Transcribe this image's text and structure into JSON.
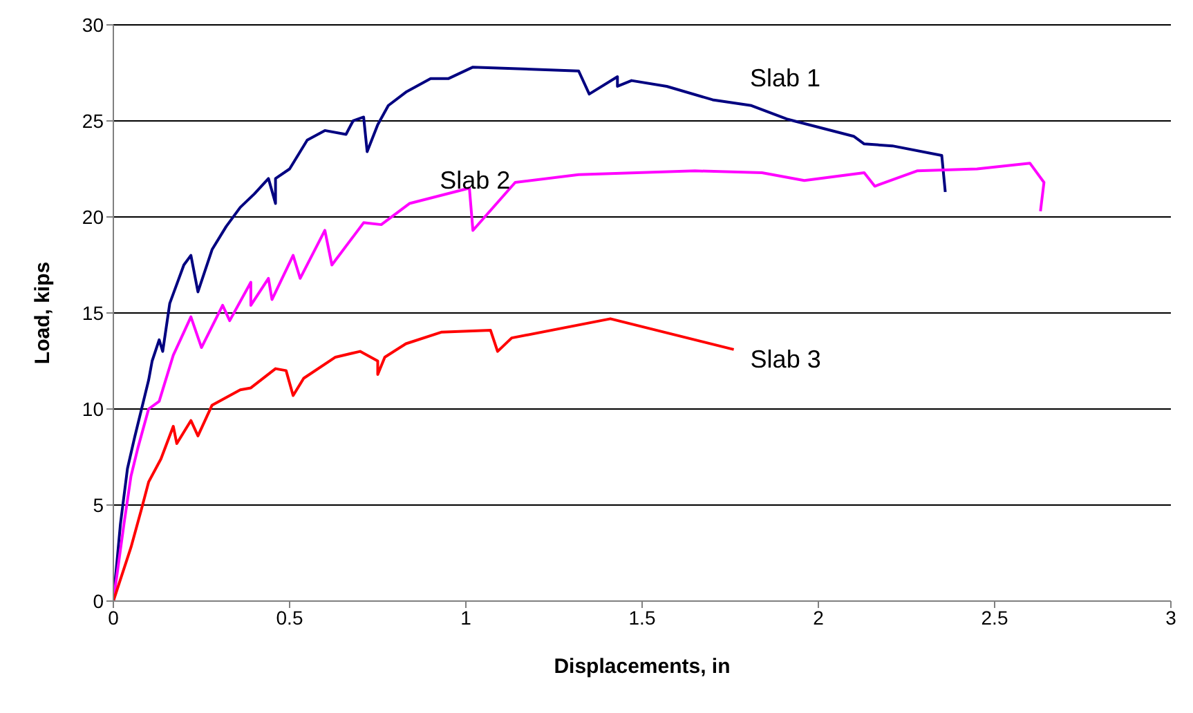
{
  "chart_data": {
    "type": "line",
    "xlabel": "Displacements, in",
    "ylabel": "Load, kips",
    "xlim": [
      0,
      3
    ],
    "xticks": [
      0,
      0.5,
      1,
      1.5,
      2,
      2.5,
      3
    ],
    "ylim": [
      0,
      30
    ],
    "yticks": [
      0,
      5,
      10,
      15,
      20,
      25,
      30
    ],
    "grid": "y",
    "legend": false,
    "marker": "none",
    "line_style": "solid",
    "series": [
      {
        "name": "Slab 1",
        "color": "#000080",
        "x": [
          0,
          0.02,
          0.04,
          0.06,
          0.08,
          0.1,
          0.11,
          0.13,
          0.14,
          0.16,
          0.2,
          0.22,
          0.24,
          0.28,
          0.32,
          0.36,
          0.4,
          0.44,
          0.46,
          0.46,
          0.5,
          0.55,
          0.6,
          0.66,
          0.68,
          0.71,
          0.72,
          0.75,
          0.78,
          0.83,
          0.9,
          0.95,
          1.02,
          1.32,
          1.35,
          1.43,
          1.43,
          1.47,
          1.57,
          1.7,
          1.81,
          1.91,
          2.1,
          2.13,
          2.21,
          2.35,
          2.36
        ],
        "values": [
          0,
          4,
          6.9,
          8.5,
          10,
          11.5,
          12.5,
          13.6,
          13,
          15.5,
          17.5,
          18,
          16.1,
          18.3,
          19.5,
          20.5,
          21.2,
          22,
          20.7,
          22,
          22.5,
          24,
          24.5,
          24.3,
          25,
          25.2,
          23.4,
          24.8,
          25.8,
          26.5,
          27.2,
          27.2,
          27.8,
          27.6,
          26.4,
          27.3,
          26.8,
          27.1,
          26.8,
          26.1,
          25.8,
          25.1,
          24.2,
          23.8,
          23.7,
          23.2,
          21.3
        ]
      },
      {
        "name": "Slab 2",
        "color": "#ff00ff",
        "x": [
          0,
          0.03,
          0.05,
          0.07,
          0.1,
          0.13,
          0.14,
          0.17,
          0.2,
          0.22,
          0.25,
          0.31,
          0.33,
          0.39,
          0.39,
          0.44,
          0.45,
          0.51,
          0.53,
          0.6,
          0.62,
          0.71,
          0.76,
          0.84,
          1.01,
          1.02,
          1.14,
          1.32,
          1.65,
          1.84,
          1.96,
          2.13,
          2.16,
          2.28,
          2.45,
          2.6,
          2.64,
          2.63
        ],
        "values": [
          0,
          4,
          6.5,
          8,
          10,
          10.4,
          11,
          12.8,
          14,
          14.8,
          13.2,
          15.4,
          14.6,
          16.6,
          15.4,
          16.8,
          15.7,
          18,
          16.8,
          19.3,
          17.5,
          19.7,
          19.6,
          20.7,
          21.5,
          19.3,
          21.8,
          22.2,
          22.4,
          22.3,
          21.9,
          22.3,
          21.6,
          22.4,
          22.5,
          22.8,
          21.8,
          20.3
        ]
      },
      {
        "name": "Slab 3",
        "color": "#ff0000",
        "x": [
          0,
          0.05,
          0.08,
          0.1,
          0.135,
          0.17,
          0.18,
          0.22,
          0.24,
          0.28,
          0.36,
          0.39,
          0.46,
          0.49,
          0.51,
          0.54,
          0.63,
          0.7,
          0.75,
          0.75,
          0.77,
          0.83,
          0.93,
          1.07,
          1.09,
          1.13,
          1.41,
          1.76
        ],
        "values": [
          0,
          2.8,
          4.8,
          6.2,
          7.4,
          9.1,
          8.2,
          9.4,
          8.6,
          10.2,
          11,
          11.1,
          12.1,
          12,
          10.7,
          11.6,
          12.7,
          13,
          12.5,
          11.8,
          12.7,
          13.4,
          14,
          14.1,
          13,
          13.7,
          14.7,
          13.1
        ]
      }
    ]
  }
}
